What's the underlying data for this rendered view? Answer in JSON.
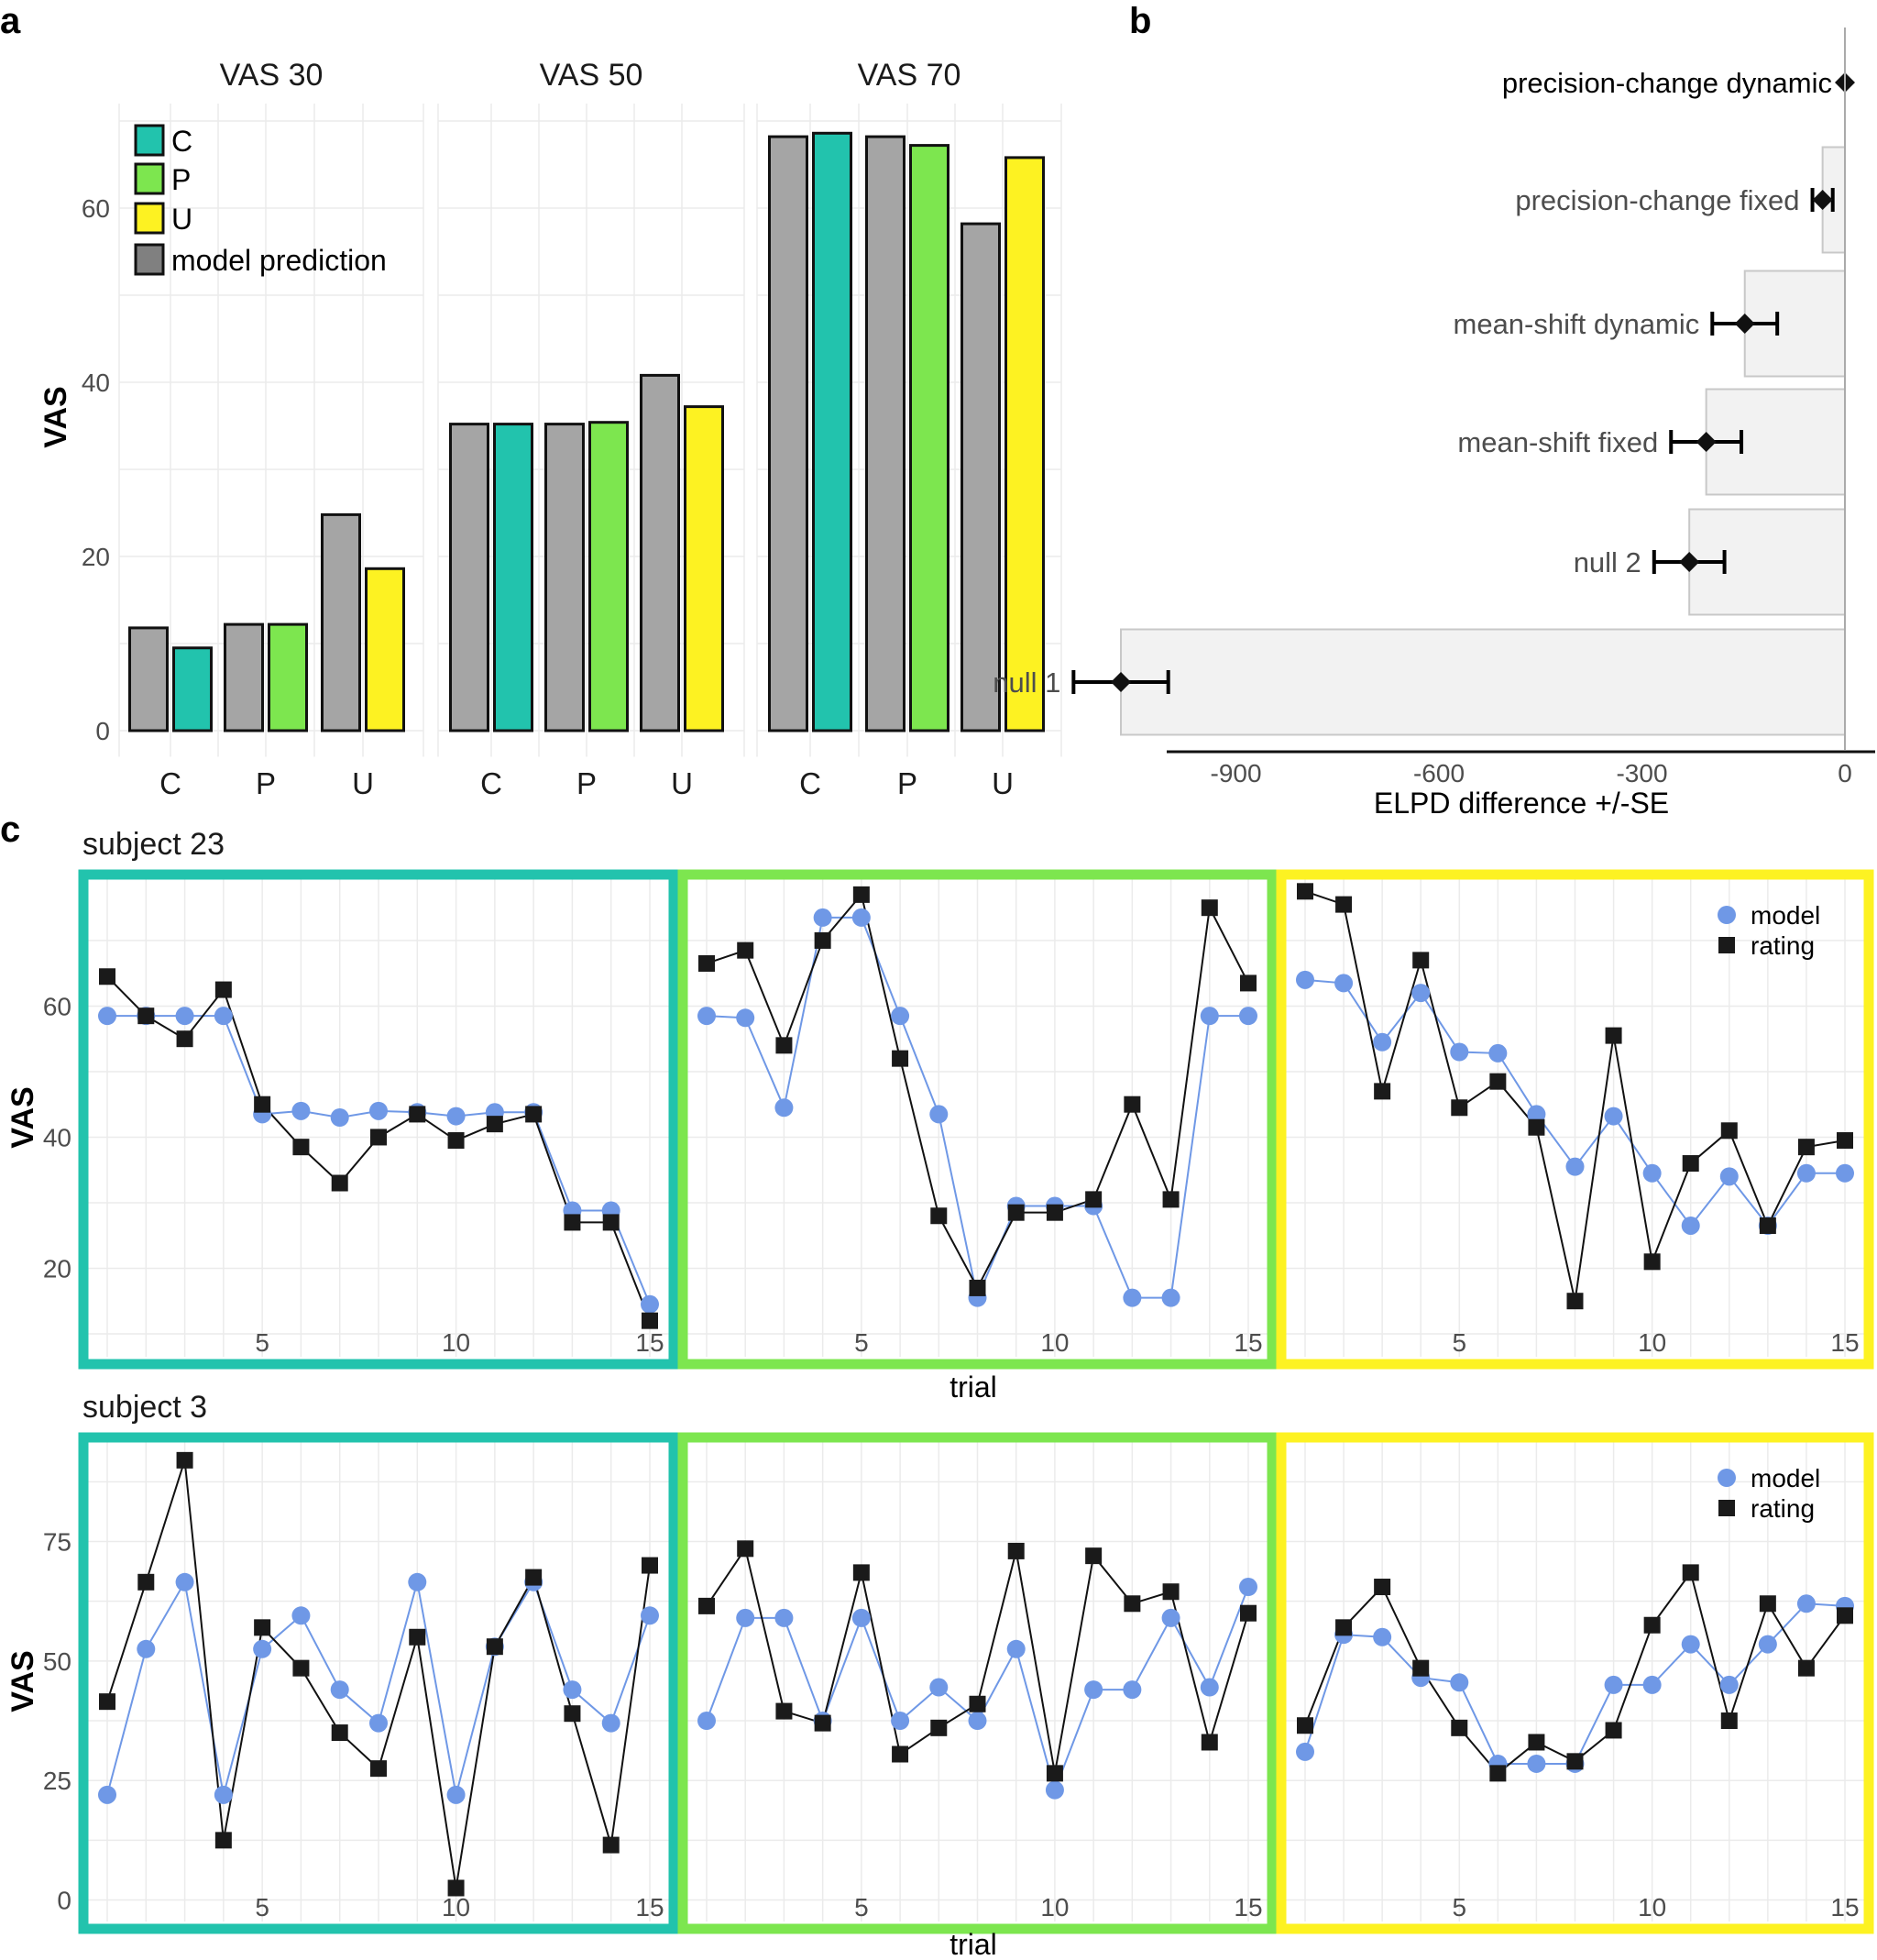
{
  "panels": {
    "a": {
      "label": "a"
    },
    "b": {
      "label": "b"
    },
    "c": {
      "label": "c"
    }
  },
  "chart_data": [
    {
      "type": "bar",
      "id": "panel-a",
      "facets": [
        "VAS 30",
        "VAS 50",
        "VAS 70"
      ],
      "categories": [
        "C",
        "P",
        "U"
      ],
      "ylabel": "VAS",
      "ylim": [
        0,
        72
      ],
      "yticks": [
        0,
        20,
        40,
        60
      ],
      "legend": [
        {
          "label": "C",
          "color": "#22c3ad"
        },
        {
          "label": "P",
          "color": "#7de64f"
        },
        {
          "label": "U",
          "color": "#fdf222"
        },
        {
          "label": "model prediction",
          "color": "#808080"
        }
      ],
      "colors": {
        "model": "#a5a5a5",
        "C": "#22c3ad",
        "P": "#7de64f",
        "U": "#fdf222"
      },
      "series": [
        {
          "name": "model prediction",
          "values": [
            [
              11.8,
              12.2,
              24.8
            ],
            [
              35.2,
              35.2,
              40.8
            ],
            [
              68.2,
              68.2,
              58.2
            ]
          ]
        },
        {
          "name": "observed",
          "values": [
            [
              9.5,
              12.2,
              18.6
            ],
            [
              35.2,
              35.4,
              37.2
            ],
            [
              68.6,
              67.2,
              65.8
            ]
          ]
        }
      ]
    },
    {
      "type": "bar",
      "id": "panel-b",
      "orientation": "horizontal",
      "xlabel": "ELPD difference +/-SE",
      "xlim": [
        -1200,
        45
      ],
      "xticks": [
        -900,
        -600,
        -300,
        0
      ],
      "models": [
        {
          "name": "precision-change dynamic",
          "elpd": 0,
          "se": 0
        },
        {
          "name": "precision-change fixed",
          "elpd": -33,
          "se": 15
        },
        {
          "name": "mean-shift dynamic",
          "elpd": -148,
          "se": 48
        },
        {
          "name": "mean-shift fixed",
          "elpd": -205,
          "se": 52
        },
        {
          "name": "null 2",
          "elpd": -230,
          "se": 52
        },
        {
          "name": "null 1",
          "elpd": -1070,
          "se": 70
        }
      ]
    },
    {
      "type": "line",
      "id": "panel-c-subject-23",
      "title": "subject 23",
      "ylabel": "VAS",
      "xlabel": "trial",
      "xticks": [
        5,
        10,
        15
      ],
      "yticks": [
        20,
        40,
        60
      ],
      "ylim": [
        6.5,
        79.5
      ],
      "legend": [
        "model",
        "rating"
      ],
      "frame_colors": [
        "#22c3ad",
        "#7de64f",
        "#fdf222"
      ],
      "facets": [
        {
          "model": [
            58.5,
            58.5,
            58.5,
            58.5,
            43.5,
            44,
            43,
            44,
            43.8,
            43.2,
            43.8,
            43.8,
            28.8,
            28.8,
            14.5
          ],
          "rating": [
            64.5,
            58.5,
            55,
            62.5,
            45,
            38.5,
            33,
            40,
            43.5,
            39.5,
            42,
            43.5,
            27,
            27,
            12
          ]
        },
        {
          "model": [
            58.5,
            58.2,
            44.5,
            73.5,
            73.5,
            58.5,
            43.5,
            15.5,
            29.5,
            29.5,
            29.5,
            15.5,
            15.5,
            58.5,
            58.5
          ],
          "rating": [
            66.5,
            68.5,
            54,
            70,
            77,
            52,
            28,
            17,
            28.5,
            28.5,
            30.5,
            45,
            30.5,
            75,
            63.5
          ]
        },
        {
          "model": [
            64,
            63.5,
            54.5,
            62,
            53,
            52.8,
            43.5,
            35.5,
            43.2,
            34.5,
            26.5,
            34,
            26.5,
            34.5,
            34.5
          ],
          "rating": [
            77.5,
            75.5,
            47,
            67,
            44.5,
            48.5,
            41.5,
            15,
            55.5,
            21,
            36,
            41,
            26.5,
            38.5,
            39.5
          ]
        }
      ]
    },
    {
      "type": "line",
      "id": "panel-c-subject-3",
      "title": "subject 3",
      "ylabel": "VAS",
      "xlabel": "trial",
      "xticks": [
        5,
        10,
        15
      ],
      "yticks": [
        0,
        25,
        50,
        75
      ],
      "ylim": [
        -4.5,
        96
      ],
      "legend": [
        "model",
        "rating"
      ],
      "frame_colors": [
        "#22c3ad",
        "#7de64f",
        "#fdf222"
      ],
      "facets": [
        {
          "model": [
            22,
            52.5,
            66.5,
            22,
            52.5,
            59.5,
            44,
            37,
            66.5,
            22,
            53,
            66.5,
            44,
            37,
            59.5
          ],
          "rating": [
            41.5,
            66.5,
            92,
            12.5,
            57,
            48.5,
            35,
            27.5,
            55,
            2.5,
            53,
            67.5,
            39,
            11.5,
            70
          ]
        },
        {
          "model": [
            37.5,
            59,
            59,
            37.5,
            59,
            37.5,
            44.5,
            37.5,
            52.5,
            23,
            44,
            44,
            59,
            44.5,
            65.5
          ],
          "rating": [
            61.5,
            73.5,
            39.5,
            37,
            68.5,
            30.5,
            36,
            41,
            73,
            26.5,
            72,
            62,
            64.5,
            33,
            60
          ]
        },
        {
          "model": [
            31,
            55.5,
            55,
            46.5,
            45.5,
            28.5,
            28.5,
            28.5,
            45,
            45,
            53.5,
            45,
            53.5,
            62,
            61.5
          ],
          "rating": [
            36.5,
            57,
            65.5,
            48.5,
            36,
            26.5,
            33,
            29,
            35.5,
            57.5,
            68.5,
            37.5,
            62,
            48.5,
            59.5
          ]
        }
      ]
    }
  ]
}
